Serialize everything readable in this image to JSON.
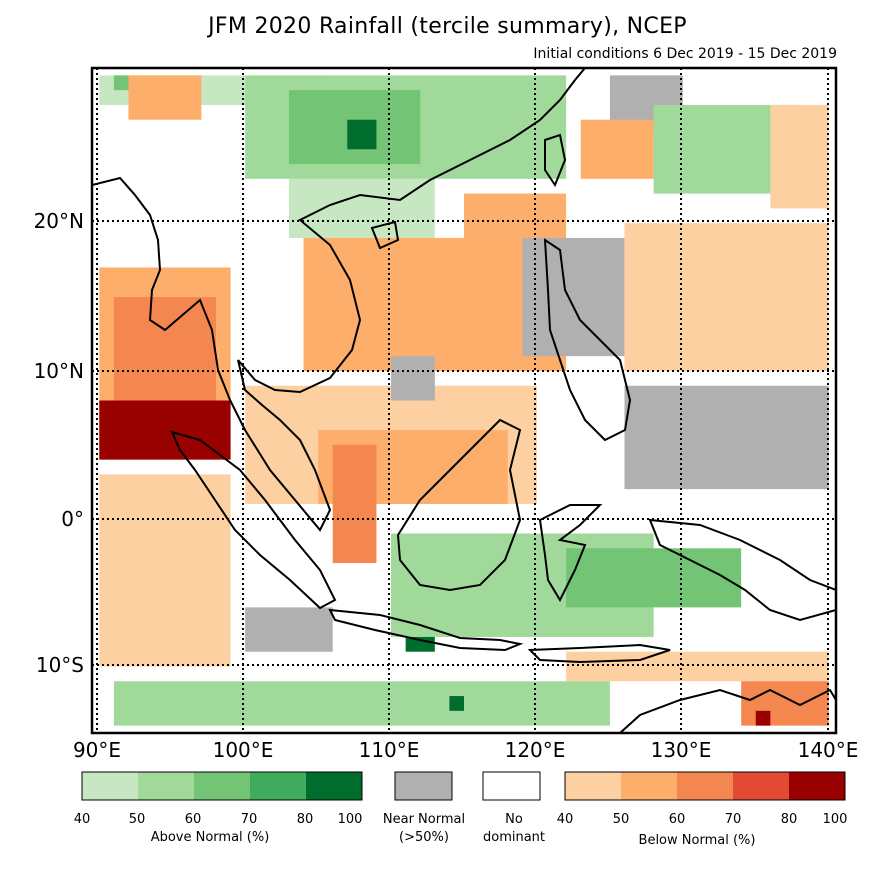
{
  "title": "JFM 2020 Rainfall (tercile summary), NCEP",
  "subtitle": "Initial conditions 6 Dec 2019 - 15 Dec 2019",
  "axes": {
    "lon_labels": [
      "90°E",
      "100°E",
      "110°E",
      "120°E",
      "130°E",
      "140°E"
    ],
    "lat_labels": [
      "20°N",
      "10°N",
      "0°",
      "10°S"
    ],
    "lon_values": [
      90,
      100,
      110,
      120,
      130,
      140
    ],
    "lat_values": [
      20,
      10,
      0,
      -10
    ],
    "lon_range": [
      89.5,
      140.5
    ],
    "lat_range": [
      -14.5,
      30.5
    ]
  },
  "palette": {
    "above": [
      "#c7e7c3",
      "#a1d99b",
      "#74c476",
      "#41ab5d",
      "#006d2c"
    ],
    "below": [
      "#fdd0a2",
      "#fdae6b",
      "#f4874f",
      "#e34a33",
      "#990000"
    ],
    "near_normal": "#b0b0b0",
    "no_dominant": "#ffffff"
  },
  "legend": {
    "above": {
      "ticks": [
        "40",
        "50",
        "60",
        "70",
        "80",
        "100"
      ],
      "caption": "Above Normal (%)"
    },
    "near_normal": {
      "caption_line1": "Near Normal",
      "caption_line2": "(>50%)"
    },
    "no_dominant": {
      "caption_line1": "No",
      "caption_line2": "dominant"
    },
    "below": {
      "ticks": [
        "40",
        "50",
        "60",
        "70",
        "80",
        "100"
      ],
      "caption": "Below Normal (%)"
    }
  },
  "regions": [
    {
      "category": "above",
      "level": 1,
      "lon": [
        90,
        106
      ],
      "lat": [
        28,
        30
      ]
    },
    {
      "category": "above",
      "level": 3,
      "lon": [
        91,
        92
      ],
      "lat": [
        29,
        30
      ]
    },
    {
      "category": "below",
      "level": 2,
      "lon": [
        92,
        97
      ],
      "lat": [
        27,
        30
      ]
    },
    {
      "category": "above",
      "level": 2,
      "lon": [
        100,
        122
      ],
      "lat": [
        23,
        30
      ]
    },
    {
      "category": "above",
      "level": 3,
      "lon": [
        103,
        112
      ],
      "lat": [
        24,
        29
      ]
    },
    {
      "category": "above",
      "level": 5,
      "lon": [
        107,
        109
      ],
      "lat": [
        25,
        27
      ]
    },
    {
      "category": "above",
      "level": 1,
      "lon": [
        103,
        113
      ],
      "lat": [
        19,
        23
      ]
    },
    {
      "category": "near",
      "level": 0,
      "lon": [
        125,
        130
      ],
      "lat": [
        26,
        30
      ]
    },
    {
      "category": "below",
      "level": 2,
      "lon": [
        123,
        128
      ],
      "lat": [
        23,
        27
      ]
    },
    {
      "category": "above",
      "level": 2,
      "lon": [
        128,
        138
      ],
      "lat": [
        22,
        28
      ]
    },
    {
      "category": "below",
      "level": 1,
      "lon": [
        136,
        140
      ],
      "lat": [
        21,
        28
      ]
    },
    {
      "category": "below",
      "level": 2,
      "lon": [
        115,
        122
      ],
      "lat": [
        19,
        22
      ]
    },
    {
      "category": "below",
      "level": 2,
      "lon": [
        90,
        99
      ],
      "lat": [
        4,
        17
      ]
    },
    {
      "category": "below",
      "level": 3,
      "lon": [
        91,
        98
      ],
      "lat": [
        8,
        15
      ]
    },
    {
      "category": "below",
      "level": 5,
      "lon": [
        90,
        99
      ],
      "lat": [
        4,
        8
      ]
    },
    {
      "category": "below",
      "level": 1,
      "lon": [
        90,
        99
      ],
      "lat": [
        -10,
        3
      ]
    },
    {
      "category": "below",
      "level": 2,
      "lon": [
        104,
        122
      ],
      "lat": [
        10,
        19
      ]
    },
    {
      "category": "near",
      "level": 0,
      "lon": [
        119,
        126
      ],
      "lat": [
        11,
        19
      ]
    },
    {
      "category": "below",
      "level": 3,
      "lon": [
        130,
        138
      ],
      "lat": [
        14,
        18
      ]
    },
    {
      "category": "below",
      "level": 1,
      "lon": [
        126,
        140
      ],
      "lat": [
        10,
        20
      ]
    },
    {
      "category": "near",
      "level": 0,
      "lon": [
        126,
        140
      ],
      "lat": [
        2,
        9
      ]
    },
    {
      "category": "below",
      "level": 1,
      "lon": [
        100,
        120
      ],
      "lat": [
        1,
        9
      ]
    },
    {
      "category": "below",
      "level": 2,
      "lon": [
        105,
        118
      ],
      "lat": [
        1,
        6
      ]
    },
    {
      "category": "below",
      "level": 3,
      "lon": [
        106,
        109
      ],
      "lat": [
        -3,
        5
      ]
    },
    {
      "category": "near",
      "level": 0,
      "lon": [
        110,
        113
      ],
      "lat": [
        8,
        11
      ]
    },
    {
      "category": "above",
      "level": 2,
      "lon": [
        110,
        128
      ],
      "lat": [
        -8,
        -1
      ]
    },
    {
      "category": "above",
      "level": 3,
      "lon": [
        122,
        134
      ],
      "lat": [
        -6,
        -2
      ]
    },
    {
      "category": "near",
      "level": 0,
      "lon": [
        100,
        106
      ],
      "lat": [
        -9,
        -6
      ]
    },
    {
      "category": "above",
      "level": 2,
      "lon": [
        91,
        125
      ],
      "lat": [
        -14,
        -11
      ]
    },
    {
      "category": "above",
      "level": 5,
      "lon": [
        114,
        115
      ],
      "lat": [
        -13,
        -12
      ]
    },
    {
      "category": "above",
      "level": 5,
      "lon": [
        111,
        113
      ],
      "lat": [
        -9,
        -8
      ]
    },
    {
      "category": "below",
      "level": 1,
      "lon": [
        122,
        140
      ],
      "lat": [
        -11,
        -9
      ]
    },
    {
      "category": "below",
      "level": 3,
      "lon": [
        134,
        140
      ],
      "lat": [
        -14,
        -11
      ]
    },
    {
      "category": "below",
      "level": 5,
      "lon": [
        135,
        136
      ],
      "lat": [
        -14,
        -13
      ]
    }
  ]
}
